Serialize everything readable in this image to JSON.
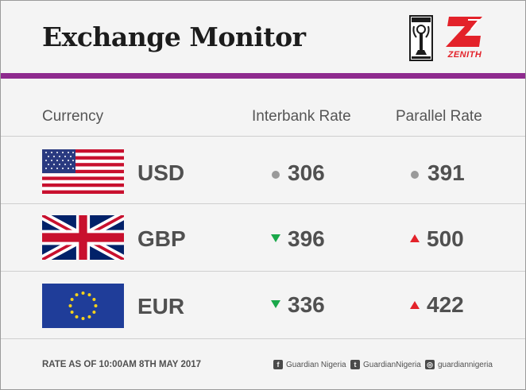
{
  "header": {
    "title": "Exchange Monitor",
    "zenith_logo_text": "ZENITH",
    "guardian_logo_icon": "guardian-emblem-icon"
  },
  "columns": {
    "currency": "Currency",
    "interbank": "Interbank Rate",
    "parallel": "Parallel Rate"
  },
  "rows": [
    {
      "code": "USD",
      "flag_icon": "us-flag-icon",
      "interbank": "306",
      "interbank_trend": "flat",
      "parallel": "391",
      "parallel_trend": "flat"
    },
    {
      "code": "GBP",
      "flag_icon": "uk-flag-icon",
      "interbank": "396",
      "interbank_trend": "down",
      "parallel": "500",
      "parallel_trend": "up"
    },
    {
      "code": "EUR",
      "flag_icon": "eu-flag-icon",
      "interbank": "336",
      "interbank_trend": "down",
      "parallel": "422",
      "parallel_trend": "up"
    }
  ],
  "footer": {
    "note": "RATE AS OF 10:00AM 8TH MAY 2017",
    "facebook": "Guardian Nigeria",
    "twitter": "GuardianNigeria",
    "instagram": "guardiannigeria"
  },
  "colors": {
    "accent_bar": "#8e2a8e",
    "trend_up": "#e3222a",
    "trend_down": "#1aa84a",
    "trend_flat": "#9a9a9a"
  }
}
